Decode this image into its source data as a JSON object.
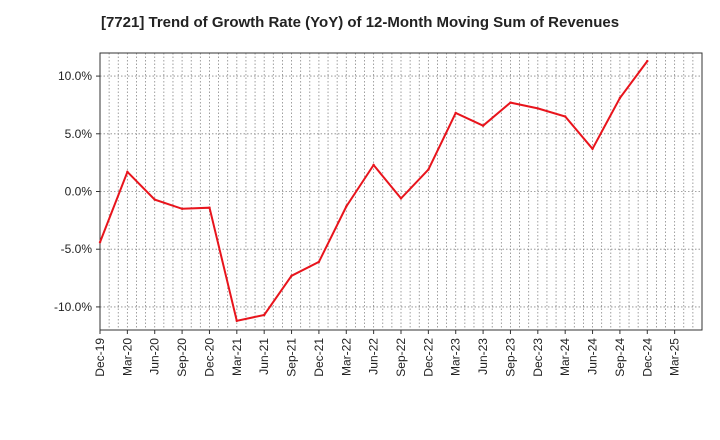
{
  "chart_data": {
    "type": "line",
    "title": "[7721]  Trend of Growth Rate (YoY) of 12-Month Moving Sum of Revenues",
    "xlabel": "",
    "ylabel": "",
    "x_ticks": [
      "Dec-19",
      "Mar-20",
      "Jun-20",
      "Sep-20",
      "Dec-20",
      "Mar-21",
      "Jun-21",
      "Sep-21",
      "Dec-21",
      "Mar-22",
      "Jun-22",
      "Sep-22",
      "Dec-22",
      "Mar-23",
      "Jun-23",
      "Sep-23",
      "Dec-23",
      "Mar-24",
      "Jun-24",
      "Sep-24",
      "Dec-24",
      "Mar-25"
    ],
    "y_ticks": [
      {
        "value": 10,
        "label": "10.0%"
      },
      {
        "value": 5,
        "label": "5.0%"
      },
      {
        "value": 0,
        "label": "0.0%"
      },
      {
        "value": -5,
        "label": "-5.0%"
      },
      {
        "value": -10,
        "label": "-10.0%"
      }
    ],
    "ylim": [
      -12,
      12
    ],
    "grid": true,
    "series": [
      {
        "color": "#e8141c",
        "x": [
          "Dec-19",
          "Mar-20",
          "Jun-20",
          "Sep-20",
          "Dec-20",
          "Mar-21",
          "Jun-21",
          "Sep-21",
          "Dec-21",
          "Mar-22",
          "Jun-22",
          "Sep-22",
          "Dec-22",
          "Mar-23",
          "Jun-23",
          "Sep-23",
          "Dec-23",
          "Mar-24",
          "Jun-24",
          "Sep-24",
          "Dec-24"
        ],
        "values": [
          -4.4,
          1.7,
          -0.7,
          -1.5,
          -1.4,
          -11.2,
          -10.7,
          -7.3,
          -6.1,
          -1.3,
          2.3,
          -0.6,
          1.9,
          6.8,
          5.7,
          7.7,
          7.2,
          6.5,
          3.7,
          8.1,
          11.3
        ]
      }
    ]
  }
}
